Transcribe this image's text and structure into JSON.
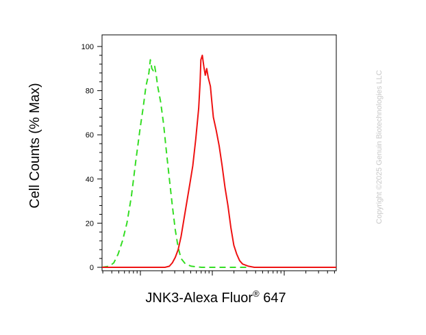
{
  "chart_data": {
    "type": "line",
    "title": "",
    "xlabel": "JNK3-Alexa Fluor",
    "xlabel_superscript": "®",
    "xlabel_suffix": " 647",
    "ylabel": "Cell Counts (% Max)",
    "x_scale": "log",
    "x_tick_labels": "none",
    "ylim": [
      0,
      100
    ],
    "y_ticks": [
      0,
      20,
      40,
      60,
      80,
      100
    ],
    "grid": false,
    "legend": "none",
    "series": [
      {
        "color": "#33dd22",
        "dash": "dashed",
        "points": [
          [
            0,
            0
          ],
          [
            5,
            0.5
          ],
          [
            8,
            2
          ],
          [
            11,
            6
          ],
          [
            14,
            12
          ],
          [
            17,
            20
          ],
          [
            20,
            32
          ],
          [
            23,
            48
          ],
          [
            26,
            63
          ],
          [
            28,
            72
          ],
          [
            30,
            82
          ],
          [
            32,
            88
          ],
          [
            33,
            94
          ],
          [
            34,
            90
          ],
          [
            35,
            89
          ],
          [
            36,
            91
          ],
          [
            37,
            87
          ],
          [
            38,
            82
          ],
          [
            40,
            75
          ],
          [
            42,
            65
          ],
          [
            44,
            52
          ],
          [
            46,
            40
          ],
          [
            48,
            28
          ],
          [
            50,
            17
          ],
          [
            52,
            9
          ],
          [
            54,
            4
          ],
          [
            57,
            1.5
          ],
          [
            61,
            0.5
          ],
          [
            68,
            0
          ],
          [
            100,
            0
          ]
        ]
      },
      {
        "color": "#ee1111",
        "dash": "solid",
        "points": [
          [
            0,
            0
          ],
          [
            43,
            0
          ],
          [
            46,
            0.5
          ],
          [
            48,
            2
          ],
          [
            50,
            4.5
          ],
          [
            52,
            8
          ],
          [
            54,
            14
          ],
          [
            56,
            22
          ],
          [
            58,
            30
          ],
          [
            60,
            38
          ],
          [
            62,
            46
          ],
          [
            64,
            58
          ],
          [
            66,
            72
          ],
          [
            67,
            84
          ],
          [
            67.5,
            94
          ],
          [
            68.5,
            96
          ],
          [
            69.5,
            91
          ],
          [
            70.5,
            87
          ],
          [
            71.5,
            90
          ],
          [
            72.5,
            86
          ],
          [
            74,
            82
          ],
          [
            75,
            75
          ],
          [
            76,
            68
          ],
          [
            78,
            62
          ],
          [
            80,
            55
          ],
          [
            82,
            46
          ],
          [
            84,
            36
          ],
          [
            86,
            28
          ],
          [
            88,
            18
          ],
          [
            90,
            10
          ],
          [
            92,
            6
          ],
          [
            94,
            3
          ],
          [
            96,
            1.5
          ],
          [
            100,
            0.5
          ],
          [
            104,
            0
          ],
          [
            160,
            0
          ]
        ]
      }
    ]
  },
  "watermark": "Copyright ©2025 Genuin Biotechnologies LLC"
}
